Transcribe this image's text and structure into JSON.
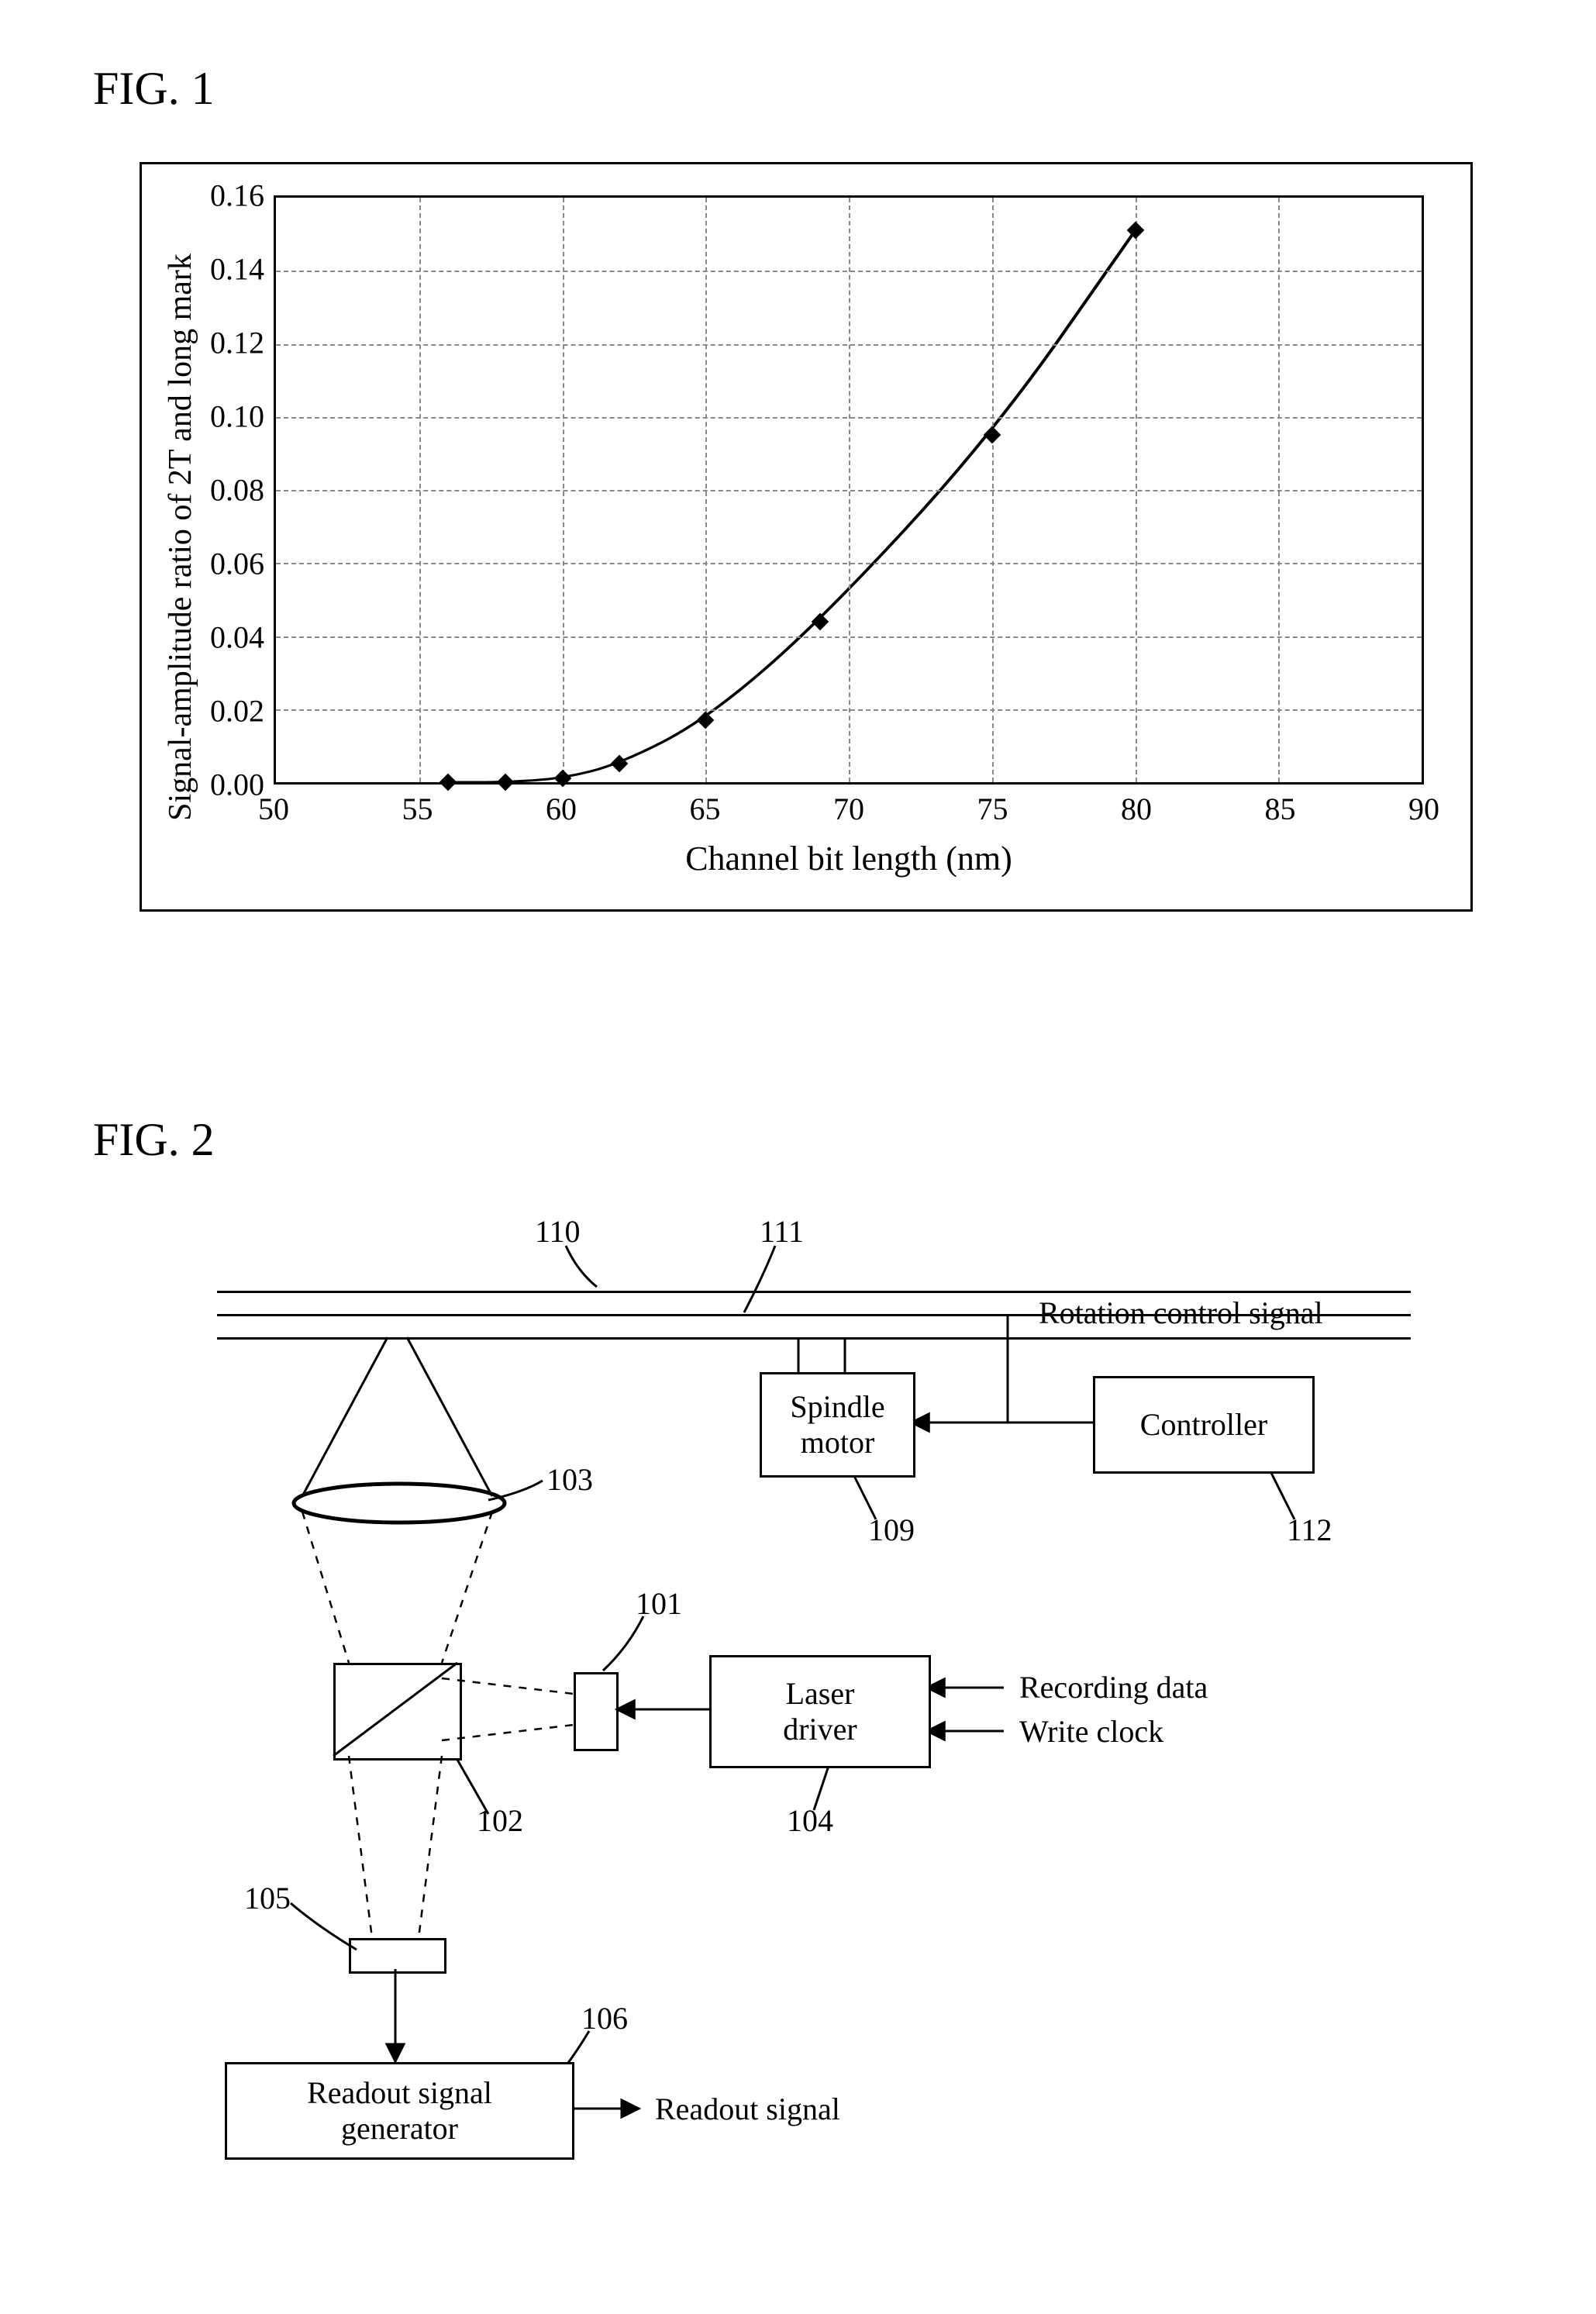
{
  "fig1": {
    "title": "FIG. 1",
    "chart": {
      "type": "line",
      "xlabel": "Channel bit length (nm)",
      "ylabel": "Signal-amplitude ratio of 2T and long mark",
      "xlim": [
        50,
        90
      ],
      "ylim": [
        0.0,
        0.16
      ],
      "xtick_step": 5,
      "ytick_step": 0.02,
      "xticks": [
        50,
        55,
        60,
        65,
        70,
        75,
        80,
        85,
        90
      ],
      "yticks": [
        "0.00",
        "0.02",
        "0.04",
        "0.06",
        "0.08",
        "0.10",
        "0.12",
        "0.14",
        "0.16"
      ],
      "grid_color": "#888888",
      "border_color": "#000000",
      "background_color": "#ffffff",
      "line_color": "#000000",
      "line_width": 3,
      "marker_style": "diamond",
      "marker_color": "#000000",
      "marker_size": 14,
      "axis_fontsize": 40,
      "label_fontsize": 44,
      "points": [
        {
          "x": 56,
          "y": 0.0
        },
        {
          "x": 58,
          "y": 0.0
        },
        {
          "x": 60,
          "y": 0.001
        },
        {
          "x": 62,
          "y": 0.005
        },
        {
          "x": 65,
          "y": 0.017
        },
        {
          "x": 69,
          "y": 0.044
        },
        {
          "x": 75,
          "y": 0.095
        },
        {
          "x": 80,
          "y": 0.151
        }
      ]
    }
  },
  "fig2": {
    "title": "FIG. 2",
    "type": "block-diagram",
    "line_color": "#000000",
    "line_width": 3,
    "font_size": 40,
    "nodes": {
      "spindle": {
        "label": "Spindle\nmotor",
        "ref": "109"
      },
      "controller": {
        "label": "Controller",
        "ref": "112"
      },
      "laser_drv": {
        "label": "Laser\ndriver",
        "ref": "104"
      },
      "readout": {
        "label": "Readout signal\ngenerator",
        "ref": "106"
      }
    },
    "refs": {
      "disc": "110",
      "track": "111",
      "lens": "103",
      "splitter": "102",
      "laser_diode": "101",
      "detector": "105"
    },
    "labels": {
      "rot_ctrl": "Rotation control signal",
      "rec_data": "Recording data",
      "wr_clk": "Write clock",
      "readout": "Readout signal"
    },
    "edges": [
      {
        "from": "controller",
        "to": "spindle",
        "label_key": "rot_ctrl"
      },
      {
        "from": "laser_drv",
        "to": "laser_diode"
      },
      {
        "from": "detector",
        "to": "readout"
      },
      {
        "from": "readout",
        "to": "out",
        "label_key": "readout"
      },
      {
        "from": "ext",
        "to": "laser_drv",
        "label_key": "rec_data"
      },
      {
        "from": "ext",
        "to": "laser_drv",
        "label_key": "wr_clk"
      }
    ]
  }
}
